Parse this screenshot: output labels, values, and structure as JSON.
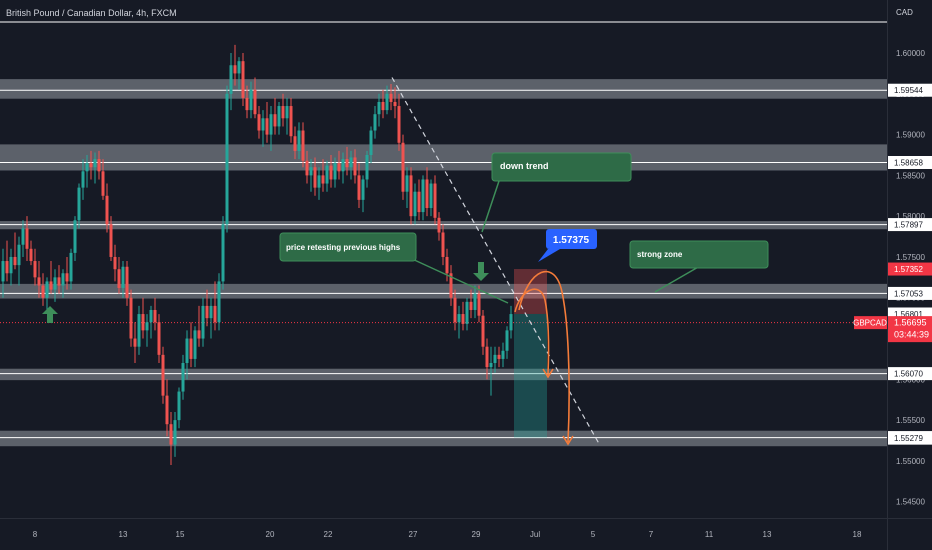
{
  "header": {
    "title": "British Pound / Canadian Dollar, 4h, FXCM",
    "currency": "CAD"
  },
  "colors": {
    "background": "#161a25",
    "up": "#26a69a",
    "down": "#ef5350",
    "zone": "#d0d4dc",
    "annotation_green": "#2e7d4f",
    "arrow_green": "#3e8e5a",
    "badge_blue": "#2962ff",
    "trend_orange": "#f57c3a",
    "axis_text": "#b2b5be",
    "current_price": "#f23645"
  },
  "chart_data": {
    "type": "candlestick",
    "symbol": "GBPCAD",
    "timeframe": "4h",
    "ylim": [
      1.543,
      1.6065
    ],
    "x_ticks": [
      "8",
      "13",
      "15",
      "20",
      "22",
      "27",
      "29",
      "Jul",
      "5",
      "7",
      "11",
      "13",
      "18"
    ],
    "y_ticks": [
      "1.60000",
      "1.59500",
      "1.59000",
      "1.58500",
      "1.58000",
      "1.57500",
      "1.57000",
      "1.56500",
      "1.56000",
      "1.55500",
      "1.55000",
      "1.54500"
    ],
    "price_labels": [
      {
        "text": "1.59544",
        "value": 1.59544,
        "style": "white"
      },
      {
        "text": "1.58658",
        "value": 1.58658,
        "style": "white"
      },
      {
        "text": "1.57897",
        "value": 1.57897,
        "style": "white"
      },
      {
        "text": "1.57352",
        "value": 1.57352,
        "style": "red"
      },
      {
        "text": "1.57053",
        "value": 1.57053,
        "style": "white"
      },
      {
        "text": "1.56801",
        "value": 1.56801,
        "style": "white"
      },
      {
        "text": "1.56070",
        "value": 1.5607,
        "style": "white"
      },
      {
        "text": "1.55286",
        "value": 1.55286,
        "style": "white"
      },
      {
        "text": "1.55279",
        "value": 1.55279,
        "style": "white"
      }
    ],
    "current_price": {
      "symbol_label": "GBPCAD",
      "price": "1.56695",
      "value": 1.56695,
      "countdown": "03:44:39"
    },
    "horizontal_lines": [
      1.6038,
      1.59544,
      1.58658,
      1.57897,
      1.57053,
      1.5607,
      1.55286
    ],
    "zones": [
      {
        "from": 1.5944,
        "to": 1.5968
      },
      {
        "from": 1.5856,
        "to": 1.5888
      },
      {
        "from": 1.5784,
        "to": 1.5794
      },
      {
        "from": 1.5699,
        "to": 1.5717
      },
      {
        "from": 1.5599,
        "to": 1.5613
      },
      {
        "from": 1.5518,
        "to": 1.5537
      }
    ],
    "trendline": [
      {
        "x": 392,
        "y": 1.597
      },
      {
        "x": 600,
        "y": 1.5519
      }
    ],
    "candles": [
      {
        "x": 3,
        "o": 1.572,
        "h": 1.576,
        "l": 1.57,
        "c": 1.5745
      },
      {
        "x": 7,
        "o": 1.5745,
        "h": 1.577,
        "l": 1.572,
        "c": 1.573
      },
      {
        "x": 11,
        "o": 1.573,
        "h": 1.576,
        "l": 1.5715,
        "c": 1.575
      },
      {
        "x": 15,
        "o": 1.575,
        "h": 1.578,
        "l": 1.5735,
        "c": 1.574
      },
      {
        "x": 19,
        "o": 1.574,
        "h": 1.5775,
        "l": 1.5715,
        "c": 1.5765
      },
      {
        "x": 23,
        "o": 1.5765,
        "h": 1.5795,
        "l": 1.575,
        "c": 1.5785
      },
      {
        "x": 27,
        "o": 1.5785,
        "h": 1.58,
        "l": 1.5745,
        "c": 1.576
      },
      {
        "x": 31,
        "o": 1.576,
        "h": 1.577,
        "l": 1.574,
        "c": 1.5745
      },
      {
        "x": 35,
        "o": 1.5745,
        "h": 1.576,
        "l": 1.5715,
        "c": 1.5725
      },
      {
        "x": 39,
        "o": 1.5725,
        "h": 1.5745,
        "l": 1.57,
        "c": 1.5715
      },
      {
        "x": 43,
        "o": 1.5715,
        "h": 1.573,
        "l": 1.569,
        "c": 1.57
      },
      {
        "x": 47,
        "o": 1.57,
        "h": 1.5725,
        "l": 1.5685,
        "c": 1.572
      },
      {
        "x": 51,
        "o": 1.572,
        "h": 1.5745,
        "l": 1.5705,
        "c": 1.571
      },
      {
        "x": 55,
        "o": 1.571,
        "h": 1.5735,
        "l": 1.5695,
        "c": 1.5725
      },
      {
        "x": 59,
        "o": 1.5725,
        "h": 1.574,
        "l": 1.5705,
        "c": 1.5715
      },
      {
        "x": 63,
        "o": 1.5715,
        "h": 1.5735,
        "l": 1.57,
        "c": 1.573
      },
      {
        "x": 67,
        "o": 1.573,
        "h": 1.575,
        "l": 1.571,
        "c": 1.572
      },
      {
        "x": 71,
        "o": 1.572,
        "h": 1.576,
        "l": 1.571,
        "c": 1.5755
      },
      {
        "x": 75,
        "o": 1.5755,
        "h": 1.58,
        "l": 1.5745,
        "c": 1.5795
      },
      {
        "x": 79,
        "o": 1.5795,
        "h": 1.584,
        "l": 1.5785,
        "c": 1.5835
      },
      {
        "x": 83,
        "o": 1.5835,
        "h": 1.587,
        "l": 1.582,
        "c": 1.5855
      },
      {
        "x": 87,
        "o": 1.5855,
        "h": 1.5875,
        "l": 1.5835,
        "c": 1.5865
      },
      {
        "x": 91,
        "o": 1.5865,
        "h": 1.588,
        "l": 1.5845,
        "c": 1.586
      },
      {
        "x": 95,
        "o": 1.586,
        "h": 1.5878,
        "l": 1.584,
        "c": 1.587
      },
      {
        "x": 99,
        "o": 1.587,
        "h": 1.588,
        "l": 1.5845,
        "c": 1.5855
      },
      {
        "x": 103,
        "o": 1.5855,
        "h": 1.587,
        "l": 1.582,
        "c": 1.5825
      },
      {
        "x": 107,
        "o": 1.5825,
        "h": 1.584,
        "l": 1.578,
        "c": 1.579
      },
      {
        "x": 111,
        "o": 1.579,
        "h": 1.58,
        "l": 1.5745,
        "c": 1.575
      },
      {
        "x": 115,
        "o": 1.575,
        "h": 1.5765,
        "l": 1.572,
        "c": 1.5735
      },
      {
        "x": 119,
        "o": 1.5735,
        "h": 1.575,
        "l": 1.5705,
        "c": 1.5712
      },
      {
        "x": 123,
        "o": 1.5712,
        "h": 1.5745,
        "l": 1.57,
        "c": 1.5738
      },
      {
        "x": 127,
        "o": 1.5738,
        "h": 1.5745,
        "l": 1.569,
        "c": 1.57
      },
      {
        "x": 131,
        "o": 1.57,
        "h": 1.571,
        "l": 1.564,
        "c": 1.565
      },
      {
        "x": 135,
        "o": 1.565,
        "h": 1.567,
        "l": 1.562,
        "c": 1.564
      },
      {
        "x": 139,
        "o": 1.564,
        "h": 1.569,
        "l": 1.563,
        "c": 1.568
      },
      {
        "x": 143,
        "o": 1.568,
        "h": 1.57,
        "l": 1.565,
        "c": 1.566
      },
      {
        "x": 147,
        "o": 1.566,
        "h": 1.568,
        "l": 1.564,
        "c": 1.567
      },
      {
        "x": 151,
        "o": 1.567,
        "h": 1.569,
        "l": 1.565,
        "c": 1.5685
      },
      {
        "x": 155,
        "o": 1.5685,
        "h": 1.57,
        "l": 1.566,
        "c": 1.567
      },
      {
        "x": 159,
        "o": 1.567,
        "h": 1.568,
        "l": 1.562,
        "c": 1.563
      },
      {
        "x": 163,
        "o": 1.563,
        "h": 1.564,
        "l": 1.557,
        "c": 1.558
      },
      {
        "x": 167,
        "o": 1.558,
        "h": 1.56,
        "l": 1.553,
        "c": 1.5545
      },
      {
        "x": 171,
        "o": 1.5545,
        "h": 1.556,
        "l": 1.5495,
        "c": 1.552
      },
      {
        "x": 175,
        "o": 1.552,
        "h": 1.556,
        "l": 1.5505,
        "c": 1.555
      },
      {
        "x": 179,
        "o": 1.555,
        "h": 1.559,
        "l": 1.554,
        "c": 1.5585
      },
      {
        "x": 183,
        "o": 1.5585,
        "h": 1.563,
        "l": 1.5575,
        "c": 1.562
      },
      {
        "x": 187,
        "o": 1.562,
        "h": 1.566,
        "l": 1.56,
        "c": 1.565
      },
      {
        "x": 191,
        "o": 1.565,
        "h": 1.567,
        "l": 1.5615,
        "c": 1.5625
      },
      {
        "x": 195,
        "o": 1.5625,
        "h": 1.5665,
        "l": 1.5615,
        "c": 1.566
      },
      {
        "x": 199,
        "o": 1.566,
        "h": 1.569,
        "l": 1.564,
        "c": 1.565
      },
      {
        "x": 203,
        "o": 1.565,
        "h": 1.57,
        "l": 1.564,
        "c": 1.569
      },
      {
        "x": 207,
        "o": 1.569,
        "h": 1.571,
        "l": 1.5665,
        "c": 1.5675
      },
      {
        "x": 211,
        "o": 1.5675,
        "h": 1.57,
        "l": 1.565,
        "c": 1.569
      },
      {
        "x": 215,
        "o": 1.569,
        "h": 1.572,
        "l": 1.566,
        "c": 1.567
      },
      {
        "x": 219,
        "o": 1.567,
        "h": 1.573,
        "l": 1.566,
        "c": 1.572
      },
      {
        "x": 223,
        "o": 1.572,
        "h": 1.58,
        "l": 1.571,
        "c": 1.579
      },
      {
        "x": 227,
        "o": 1.579,
        "h": 1.596,
        "l": 1.578,
        "c": 1.595
      },
      {
        "x": 231,
        "o": 1.595,
        "h": 1.6,
        "l": 1.593,
        "c": 1.5985
      },
      {
        "x": 235,
        "o": 1.5985,
        "h": 1.601,
        "l": 1.596,
        "c": 1.5975
      },
      {
        "x": 239,
        "o": 1.5975,
        "h": 1.5995,
        "l": 1.5955,
        "c": 1.599
      },
      {
        "x": 243,
        "o": 1.599,
        "h": 1.6,
        "l": 1.5935,
        "c": 1.5945
      },
      {
        "x": 247,
        "o": 1.5945,
        "h": 1.596,
        "l": 1.592,
        "c": 1.593
      },
      {
        "x": 251,
        "o": 1.593,
        "h": 1.5965,
        "l": 1.592,
        "c": 1.5955
      },
      {
        "x": 255,
        "o": 1.5955,
        "h": 1.597,
        "l": 1.592,
        "c": 1.5925
      },
      {
        "x": 259,
        "o": 1.5925,
        "h": 1.5935,
        "l": 1.5895,
        "c": 1.5905
      },
      {
        "x": 263,
        "o": 1.5905,
        "h": 1.593,
        "l": 1.5885,
        "c": 1.592
      },
      {
        "x": 267,
        "o": 1.592,
        "h": 1.594,
        "l": 1.589,
        "c": 1.59
      },
      {
        "x": 271,
        "o": 1.59,
        "h": 1.5935,
        "l": 1.588,
        "c": 1.5925
      },
      {
        "x": 275,
        "o": 1.5925,
        "h": 1.5945,
        "l": 1.59,
        "c": 1.591
      },
      {
        "x": 279,
        "o": 1.591,
        "h": 1.594,
        "l": 1.59,
        "c": 1.5935
      },
      {
        "x": 283,
        "o": 1.5935,
        "h": 1.595,
        "l": 1.591,
        "c": 1.592
      },
      {
        "x": 287,
        "o": 1.592,
        "h": 1.5945,
        "l": 1.59,
        "c": 1.5935
      },
      {
        "x": 291,
        "o": 1.5935,
        "h": 1.5945,
        "l": 1.589,
        "c": 1.5898
      },
      {
        "x": 295,
        "o": 1.5898,
        "h": 1.591,
        "l": 1.587,
        "c": 1.588
      },
      {
        "x": 299,
        "o": 1.588,
        "h": 1.5915,
        "l": 1.587,
        "c": 1.5905
      },
      {
        "x": 303,
        "o": 1.5905,
        "h": 1.5915,
        "l": 1.586,
        "c": 1.5868
      },
      {
        "x": 307,
        "o": 1.5868,
        "h": 1.588,
        "l": 1.584,
        "c": 1.585
      },
      {
        "x": 311,
        "o": 1.585,
        "h": 1.587,
        "l": 1.583,
        "c": 1.586
      },
      {
        "x": 315,
        "o": 1.586,
        "h": 1.5872,
        "l": 1.5825,
        "c": 1.5835
      },
      {
        "x": 319,
        "o": 1.5835,
        "h": 1.586,
        "l": 1.582,
        "c": 1.585
      },
      {
        "x": 323,
        "o": 1.585,
        "h": 1.587,
        "l": 1.583,
        "c": 1.584
      },
      {
        "x": 327,
        "o": 1.584,
        "h": 1.5868,
        "l": 1.583,
        "c": 1.5862
      },
      {
        "x": 331,
        "o": 1.5862,
        "h": 1.5875,
        "l": 1.5835,
        "c": 1.5845
      },
      {
        "x": 335,
        "o": 1.5845,
        "h": 1.5872,
        "l": 1.5835,
        "c": 1.5865
      },
      {
        "x": 339,
        "o": 1.5865,
        "h": 1.588,
        "l": 1.5845,
        "c": 1.5855
      },
      {
        "x": 343,
        "o": 1.5855,
        "h": 1.5878,
        "l": 1.584,
        "c": 1.587
      },
      {
        "x": 347,
        "o": 1.587,
        "h": 1.5885,
        "l": 1.585,
        "c": 1.586
      },
      {
        "x": 351,
        "o": 1.586,
        "h": 1.588,
        "l": 1.5845,
        "c": 1.5872
      },
      {
        "x": 355,
        "o": 1.5872,
        "h": 1.5882,
        "l": 1.584,
        "c": 1.585
      },
      {
        "x": 359,
        "o": 1.585,
        "h": 1.5865,
        "l": 1.581,
        "c": 1.582
      },
      {
        "x": 363,
        "o": 1.582,
        "h": 1.585,
        "l": 1.5805,
        "c": 1.5845
      },
      {
        "x": 367,
        "o": 1.5845,
        "h": 1.588,
        "l": 1.5835,
        "c": 1.5875
      },
      {
        "x": 371,
        "o": 1.5875,
        "h": 1.591,
        "l": 1.5865,
        "c": 1.5905
      },
      {
        "x": 375,
        "o": 1.5905,
        "h": 1.5935,
        "l": 1.5895,
        "c": 1.5925
      },
      {
        "x": 379,
        "o": 1.5925,
        "h": 1.595,
        "l": 1.591,
        "c": 1.594
      },
      {
        "x": 383,
        "o": 1.594,
        "h": 1.5955,
        "l": 1.592,
        "c": 1.593
      },
      {
        "x": 387,
        "o": 1.593,
        "h": 1.596,
        "l": 1.5925,
        "c": 1.595
      },
      {
        "x": 391,
        "o": 1.595,
        "h": 1.5962,
        "l": 1.593,
        "c": 1.594
      },
      {
        "x": 395,
        "o": 1.594,
        "h": 1.5958,
        "l": 1.592,
        "c": 1.5935
      },
      {
        "x": 399,
        "o": 1.5935,
        "h": 1.595,
        "l": 1.588,
        "c": 1.589
      },
      {
        "x": 403,
        "o": 1.589,
        "h": 1.59,
        "l": 1.582,
        "c": 1.583
      },
      {
        "x": 407,
        "o": 1.583,
        "h": 1.586,
        "l": 1.581,
        "c": 1.585
      },
      {
        "x": 411,
        "o": 1.585,
        "h": 1.586,
        "l": 1.579,
        "c": 1.58
      },
      {
        "x": 415,
        "o": 1.58,
        "h": 1.584,
        "l": 1.579,
        "c": 1.583
      },
      {
        "x": 419,
        "o": 1.583,
        "h": 1.5845,
        "l": 1.5795,
        "c": 1.5805
      },
      {
        "x": 423,
        "o": 1.5805,
        "h": 1.585,
        "l": 1.5795,
        "c": 1.5845
      },
      {
        "x": 427,
        "o": 1.5845,
        "h": 1.586,
        "l": 1.58,
        "c": 1.581
      },
      {
        "x": 431,
        "o": 1.581,
        "h": 1.5845,
        "l": 1.58,
        "c": 1.584
      },
      {
        "x": 435,
        "o": 1.584,
        "h": 1.585,
        "l": 1.579,
        "c": 1.5798
      },
      {
        "x": 439,
        "o": 1.5798,
        "h": 1.5805,
        "l": 1.577,
        "c": 1.578
      },
      {
        "x": 443,
        "o": 1.578,
        "h": 1.579,
        "l": 1.574,
        "c": 1.575
      },
      {
        "x": 447,
        "o": 1.575,
        "h": 1.576,
        "l": 1.572,
        "c": 1.573
      },
      {
        "x": 451,
        "o": 1.573,
        "h": 1.574,
        "l": 1.569,
        "c": 1.57
      },
      {
        "x": 455,
        "o": 1.57,
        "h": 1.571,
        "l": 1.566,
        "c": 1.567
      },
      {
        "x": 459,
        "o": 1.567,
        "h": 1.569,
        "l": 1.565,
        "c": 1.568
      },
      {
        "x": 463,
        "o": 1.568,
        "h": 1.5695,
        "l": 1.566,
        "c": 1.5668
      },
      {
        "x": 467,
        "o": 1.5668,
        "h": 1.57,
        "l": 1.566,
        "c": 1.5695
      },
      {
        "x": 471,
        "o": 1.5695,
        "h": 1.571,
        "l": 1.5675,
        "c": 1.5685
      },
      {
        "x": 475,
        "o": 1.5685,
        "h": 1.5715,
        "l": 1.5675,
        "c": 1.5705
      },
      {
        "x": 479,
        "o": 1.5705,
        "h": 1.5715,
        "l": 1.567,
        "c": 1.5678
      },
      {
        "x": 483,
        "o": 1.5678,
        "h": 1.5685,
        "l": 1.563,
        "c": 1.564
      },
      {
        "x": 487,
        "o": 1.564,
        "h": 1.565,
        "l": 1.56,
        "c": 1.5615
      },
      {
        "x": 491,
        "o": 1.5615,
        "h": 1.564,
        "l": 1.558,
        "c": 1.562
      },
      {
        "x": 495,
        "o": 1.562,
        "h": 1.564,
        "l": 1.5608,
        "c": 1.563
      },
      {
        "x": 499,
        "o": 1.563,
        "h": 1.564,
        "l": 1.5615,
        "c": 1.5625
      },
      {
        "x": 503,
        "o": 1.5625,
        "h": 1.5645,
        "l": 1.5615,
        "c": 1.5635
      },
      {
        "x": 507,
        "o": 1.5635,
        "h": 1.5665,
        "l": 1.5625,
        "c": 1.566
      },
      {
        "x": 511,
        "o": 1.566,
        "h": 1.569,
        "l": 1.565,
        "c": 1.568
      }
    ],
    "position": {
      "x_from": 514,
      "x_to": 547,
      "entry": 1.56801,
      "stop": 1.57352,
      "target": 1.55286
    },
    "annotations": [
      {
        "text": "down trend"
      },
      {
        "text": "price retesting previous highs"
      },
      {
        "text": "strong zone"
      },
      {
        "text": "1.57375"
      }
    ]
  }
}
